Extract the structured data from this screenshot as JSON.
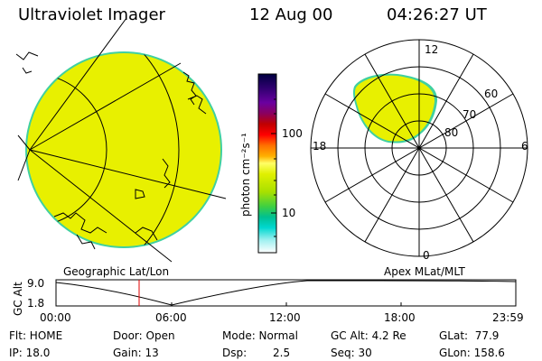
{
  "header": {
    "instrument": "Ultraviolet Imager",
    "date": "12 Aug 00",
    "time": "04:26:27 UT"
  },
  "colorbar": {
    "unit_label": "photon cm⁻²s⁻¹",
    "ticks": [
      "100",
      "10"
    ],
    "colors": [
      "#000040",
      "#300070",
      "#6a00a0",
      "#8a0060",
      "#c00000",
      "#ff0000",
      "#ff7000",
      "#ffb000",
      "#ffff66",
      "#e0f000",
      "#a8e000",
      "#40d040",
      "#00c090",
      "#00d8d0",
      "#a0f0f0",
      "#ffffff"
    ]
  },
  "geo_panel": {
    "label": "Geographic Lat/Lon",
    "fill_color": "#e8f000",
    "edge_color": "#40d0a0"
  },
  "polar_panel": {
    "label": "Apex MLat/MLT",
    "mlt_labels": {
      "top": "12",
      "bottom": "0",
      "left": "18",
      "right": "6"
    },
    "lat_labels": [
      "60",
      "70",
      "80"
    ],
    "fill_color": "#e8f000"
  },
  "altitude_plot": {
    "ylabel": "GC Alt",
    "y_top": "9.0",
    "y_bottom": "1.8",
    "x_ticks": [
      "00:00",
      "06:00",
      "12:00",
      "18:00",
      "23:59"
    ],
    "marker_color": "#e00000"
  },
  "info": {
    "flt": "Flt: HOME",
    "ip": "IP: 18.0",
    "door": "Door: Open",
    "gain": "Gain: 13",
    "mode": "Mode: Normal",
    "dsp_label": "Dsp:",
    "dsp_value": "2.5",
    "gc_alt": "GC Alt: 4.2 Re",
    "seq": "Seq: 30",
    "glat": "GLat:  77.9",
    "glon": "GLon: 158.6"
  }
}
